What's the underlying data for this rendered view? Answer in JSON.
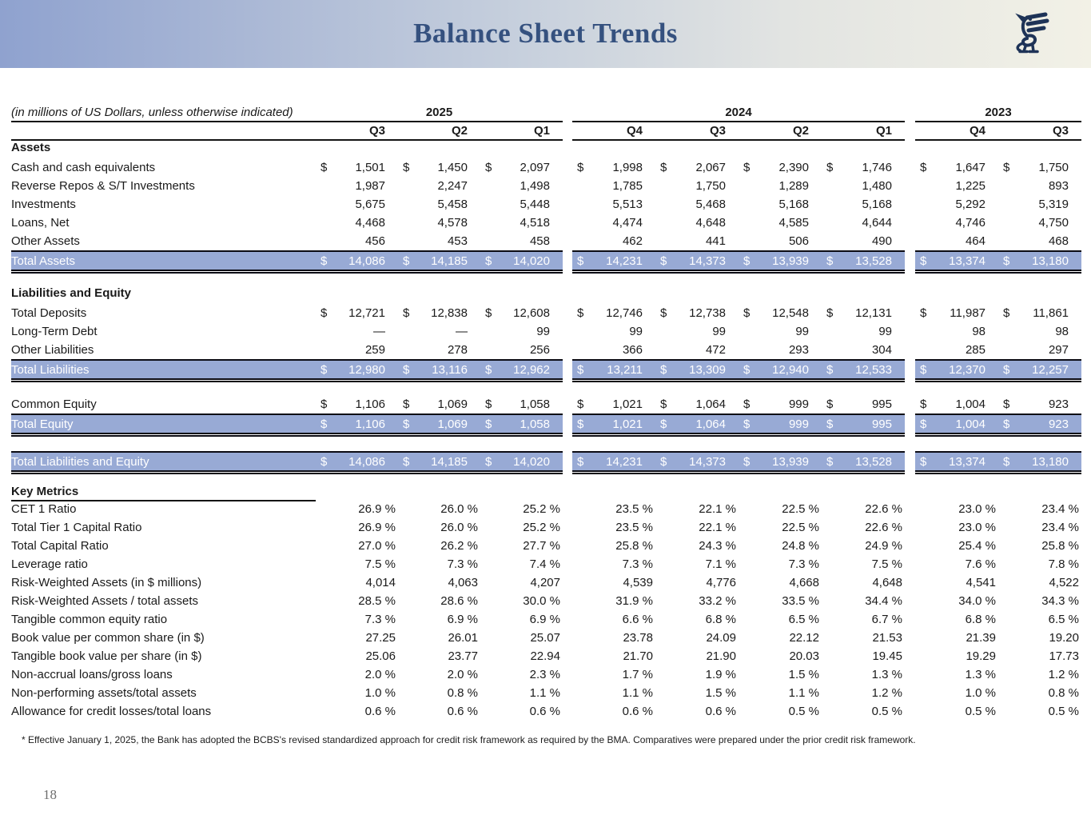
{
  "header": {
    "title": "Balance Sheet Trends",
    "logo": "dragon-crest",
    "title_color": "#35517f",
    "band_gradient": [
      "#8fa2cf",
      "#f2f1e6"
    ],
    "logo_color": "#1e3357"
  },
  "table": {
    "unit_note": "(in millions of US Dollars, unless otherwise indicated)",
    "currency_symbol": "$",
    "highlight_color": "#98aad5",
    "year_groups": [
      {
        "label": "2025",
        "quarters": [
          "Q3",
          "Q2",
          "Q1"
        ]
      },
      {
        "label": "2024",
        "quarters": [
          "Q4",
          "Q3",
          "Q2",
          "Q1"
        ]
      },
      {
        "label": "2023",
        "quarters": [
          "Q4",
          "Q3"
        ]
      }
    ],
    "rows": [
      {
        "type": "section",
        "label": "Assets"
      },
      {
        "type": "item",
        "label": "Cash and cash equivalents",
        "dollar": true,
        "pad": "dollar",
        "values": [
          "1,501",
          "1,450",
          "2,097",
          "1,998",
          "2,067",
          "2,390",
          "1,746",
          "1,647",
          "1,750"
        ]
      },
      {
        "type": "item",
        "label": "Reverse Repos & S/T Investments",
        "dollar": false,
        "pad": "dollar",
        "values": [
          "1,987",
          "2,247",
          "1,498",
          "1,785",
          "1,750",
          "1,289",
          "1,480",
          "1,225",
          "893"
        ]
      },
      {
        "type": "item",
        "label": "Investments",
        "dollar": false,
        "pad": "dollar",
        "values": [
          "5,675",
          "5,458",
          "5,448",
          "5,513",
          "5,468",
          "5,168",
          "5,168",
          "5,292",
          "5,319"
        ]
      },
      {
        "type": "item",
        "label": "Loans, Net",
        "dollar": false,
        "pad": "dollar",
        "values": [
          "4,468",
          "4,578",
          "4,518",
          "4,474",
          "4,648",
          "4,585",
          "4,644",
          "4,746",
          "4,750"
        ]
      },
      {
        "type": "item",
        "label": "Other Assets",
        "dollar": false,
        "pad": "dollar",
        "values": [
          "456",
          "453",
          "458",
          "462",
          "441",
          "506",
          "490",
          "464",
          "468"
        ]
      },
      {
        "type": "total",
        "label": "Total Assets",
        "dollar": true,
        "pad": "dollar",
        "values": [
          "14,086",
          "14,185",
          "14,020",
          "14,231",
          "14,373",
          "13,939",
          "13,528",
          "13,374",
          "13,180"
        ]
      },
      {
        "type": "spacer",
        "h": 14
      },
      {
        "type": "section",
        "label": "Liabilities and Equity"
      },
      {
        "type": "item",
        "label": "Total Deposits",
        "dollar": true,
        "pad": "dollar",
        "values": [
          "12,721",
          "12,838",
          "12,608",
          "12,746",
          "12,738",
          "12,548",
          "12,131",
          "11,987",
          "11,861"
        ]
      },
      {
        "type": "item",
        "label": "Long-Term Debt",
        "dollar": false,
        "pad": "dollar",
        "values": [
          "—",
          "—",
          "99",
          "99",
          "99",
          "99",
          "99",
          "98",
          "98"
        ]
      },
      {
        "type": "item",
        "label": "Other Liabilities",
        "dollar": false,
        "pad": "dollar",
        "values": [
          "259",
          "278",
          "256",
          "366",
          "472",
          "293",
          "304",
          "285",
          "297"
        ]
      },
      {
        "type": "total",
        "label": "Total Liabilities",
        "dollar": true,
        "pad": "dollar",
        "values": [
          "12,980",
          "13,116",
          "12,962",
          "13,211",
          "13,309",
          "12,940",
          "12,533",
          "12,370",
          "12,257"
        ]
      },
      {
        "type": "spacer",
        "h": 14
      },
      {
        "type": "item",
        "label": "Common Equity",
        "dollar": true,
        "pad": "dollar",
        "values": [
          "1,106",
          "1,069",
          "1,058",
          "1,021",
          "1,064",
          "999",
          "995",
          "1,004",
          "923"
        ]
      },
      {
        "type": "total",
        "label": "Total Equity",
        "dollar": true,
        "pad": "dollar",
        "values": [
          "1,106",
          "1,069",
          "1,058",
          "1,021",
          "1,064",
          "999",
          "995",
          "1,004",
          "923"
        ]
      },
      {
        "type": "spacer",
        "h": 16
      },
      {
        "type": "total",
        "label": "Total Liabilities and Equity",
        "dollar": true,
        "pad": "dollar",
        "values": [
          "14,086",
          "14,185",
          "14,020",
          "14,231",
          "14,373",
          "13,939",
          "13,528",
          "13,374",
          "13,180"
        ]
      },
      {
        "type": "spacer",
        "h": 8
      },
      {
        "type": "section",
        "label": "Key Metrics",
        "underline": true
      },
      {
        "type": "metric",
        "label": "CET 1 Ratio",
        "dollar": false,
        "pad": "metric",
        "values": [
          "26.9 %",
          "26.0 %",
          "25.2 %",
          "23.5 %",
          "22.1 %",
          "22.5 %",
          "22.6 %",
          "23.0 %",
          "23.4 %"
        ]
      },
      {
        "type": "metric",
        "label": "Total Tier 1 Capital Ratio",
        "dollar": false,
        "pad": "metric",
        "values": [
          "26.9 %",
          "26.0 %",
          "25.2 %",
          "23.5 %",
          "22.1 %",
          "22.5 %",
          "22.6 %",
          "23.0 %",
          "23.4 %"
        ]
      },
      {
        "type": "metric",
        "label": "Total Capital Ratio",
        "dollar": false,
        "pad": "metric",
        "values": [
          "27.0 %",
          "26.2 %",
          "27.7 %",
          "25.8 %",
          "24.3 %",
          "24.8 %",
          "24.9 %",
          "25.4 %",
          "25.8 %"
        ]
      },
      {
        "type": "metric",
        "label": "Leverage ratio",
        "dollar": false,
        "pad": "metric",
        "values": [
          "7.5 %",
          "7.3 %",
          "7.4 %",
          "7.3 %",
          "7.1 %",
          "7.3 %",
          "7.5 %",
          "7.6 %",
          "7.8 %"
        ]
      },
      {
        "type": "metric",
        "label": "Risk-Weighted Assets (in $ millions)",
        "dollar": false,
        "pad": "metric",
        "values": [
          "4,014",
          "4,063",
          "4,207",
          "4,539",
          "4,776",
          "4,668",
          "4,648",
          "4,541",
          "4,522"
        ]
      },
      {
        "type": "metric",
        "label": "Risk-Weighted Assets / total assets",
        "dollar": false,
        "pad": "metric",
        "values": [
          "28.5 %",
          "28.6 %",
          "30.0 %",
          "31.9 %",
          "33.2 %",
          "33.5 %",
          "34.4 %",
          "34.0 %",
          "34.3 %"
        ]
      },
      {
        "type": "metric",
        "label": "Tangible common equity ratio",
        "dollar": false,
        "pad": "metric",
        "values": [
          "7.3 %",
          "6.9 %",
          "6.9 %",
          "6.6 %",
          "6.8 %",
          "6.5 %",
          "6.7 %",
          "6.8 %",
          "6.5 %"
        ]
      },
      {
        "type": "metric",
        "label": "Book value per common share (in $)",
        "dollar": false,
        "pad": "metric",
        "values": [
          "27.25",
          "26.01",
          "25.07",
          "23.78",
          "24.09",
          "22.12",
          "21.53",
          "21.39",
          "19.20"
        ]
      },
      {
        "type": "metric",
        "label": "Tangible book value per share (in $)",
        "dollar": false,
        "pad": "metric",
        "values": [
          "25.06",
          "23.77",
          "22.94",
          "21.70",
          "21.90",
          "20.03",
          "19.45",
          "19.29",
          "17.73"
        ]
      },
      {
        "type": "metric",
        "label": "Non-accrual loans/gross loans",
        "dollar": false,
        "pad": "metric",
        "values": [
          "2.0 %",
          "2.0 %",
          "2.3 %",
          "1.7 %",
          "1.9 %",
          "1.5 %",
          "1.3 %",
          "1.3 %",
          "1.2 %"
        ]
      },
      {
        "type": "metric",
        "label": "Non-performing assets/total assets",
        "dollar": false,
        "pad": "metric",
        "values": [
          "1.0 %",
          "0.8 %",
          "1.1 %",
          "1.1 %",
          "1.5 %",
          "1.1 %",
          "1.2 %",
          "1.0 %",
          "0.8 %"
        ]
      },
      {
        "type": "metric",
        "label": "Allowance for credit losses/total loans",
        "dollar": false,
        "pad": "metric",
        "values": [
          "0.6 %",
          "0.6 %",
          "0.6 %",
          "0.6 %",
          "0.6 %",
          "0.5 %",
          "0.5 %",
          "0.5 %",
          "0.5 %"
        ]
      }
    ]
  },
  "footnote": "* Effective January 1, 2025, the Bank has adopted the BCBS's revised standardized approach for credit risk framework as required by the BMA. Comparatives were prepared under the prior credit risk framework.",
  "page_number": "18"
}
